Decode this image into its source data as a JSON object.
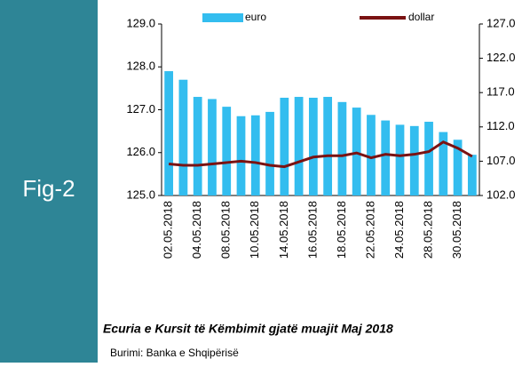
{
  "sidebar": {
    "label": "Fig-2"
  },
  "chart_data": {
    "type": "bar-line",
    "categories": [
      "02.05.2018",
      null,
      "04.05.2018",
      null,
      "08.05.2018",
      null,
      "10.05.2018",
      null,
      "14.05.2018",
      null,
      "16.05.2018",
      null,
      "18.05.2018",
      null,
      "22.05.2018",
      null,
      "24.05.2018",
      null,
      "28.05.2018",
      null,
      "30.05.2018",
      null
    ],
    "series": [
      {
        "name": "euro",
        "color": "#33bdef",
        "kind": "bar",
        "axis": "y",
        "values": [
          127.9,
          127.7,
          127.3,
          127.25,
          127.07,
          126.85,
          126.87,
          126.95,
          127.28,
          127.3,
          127.28,
          127.3,
          127.18,
          127.05,
          126.88,
          126.75,
          126.65,
          126.62,
          126.72,
          126.48,
          126.3,
          125.95
        ]
      },
      {
        "name": "dollar",
        "color": "#7a1212",
        "kind": "line",
        "axis": "y2",
        "values": [
          106.6,
          106.4,
          106.4,
          106.6,
          106.8,
          107.0,
          106.8,
          106.4,
          106.2,
          106.9,
          107.6,
          107.8,
          107.8,
          108.2,
          107.5,
          108.0,
          107.8,
          108.0,
          108.4,
          109.8,
          108.9,
          107.7
        ]
      }
    ],
    "ylim": [
      125,
      129
    ],
    "yticks": [
      {
        "value": 125,
        "label": "125.0"
      },
      {
        "value": 126,
        "label": "126.0"
      },
      {
        "value": 127,
        "label": "127.0"
      },
      {
        "value": 128,
        "label": "128.0"
      },
      {
        "value": 129,
        "label": "129.0"
      }
    ],
    "y2lim": [
      102,
      127
    ],
    "y2ticks": [
      {
        "value": 102,
        "label": "102.0"
      },
      {
        "value": 107,
        "label": "107.0"
      },
      {
        "value": 112,
        "label": "112.0"
      },
      {
        "value": 117,
        "label": "117.0"
      },
      {
        "value": 122,
        "label": "122.0"
      },
      {
        "value": 127,
        "label": "127.0"
      }
    ]
  },
  "caption": "Ecuria e Kursit të Këmbimit gjatë muajit Maj 2018",
  "source": "Burimi: Banka e Shqipërisë"
}
